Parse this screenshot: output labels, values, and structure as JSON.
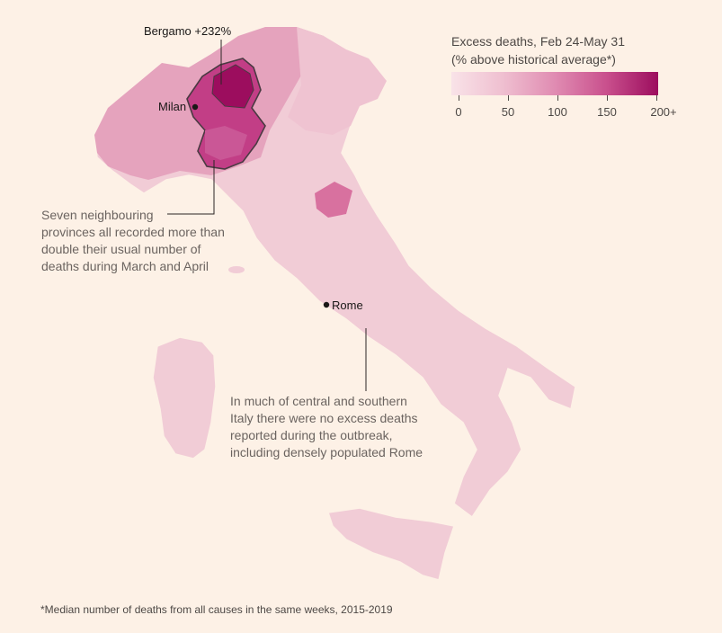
{
  "legend": {
    "title_line1": "Excess deaths, Feb 24-May 31",
    "title_line2": "(% above historical average*)",
    "ticks": [
      "0",
      "50",
      "100",
      "150",
      "200+"
    ],
    "color_low": "#f7dbe2",
    "color_high": "#9c0d5e"
  },
  "labels": {
    "bergamo": "Bergamo +232%",
    "milan": "Milan",
    "rome": "Rome"
  },
  "annotations": {
    "north": [
      "Seven neighbouring",
      "provinces all recorded more than",
      "double their usual number of",
      "deaths during March and April"
    ],
    "south": [
      "In much of central and southern",
      "Italy there were no excess deaths",
      "reported during the outbreak,",
      "including densely populated Rome"
    ]
  },
  "footnote": "*Median number of deaths from all causes in the same weeks, 2015-2019",
  "colors": {
    "background": "#fdf1e6",
    "land_base": "#f3d2da",
    "outline": "#5a4a50"
  }
}
